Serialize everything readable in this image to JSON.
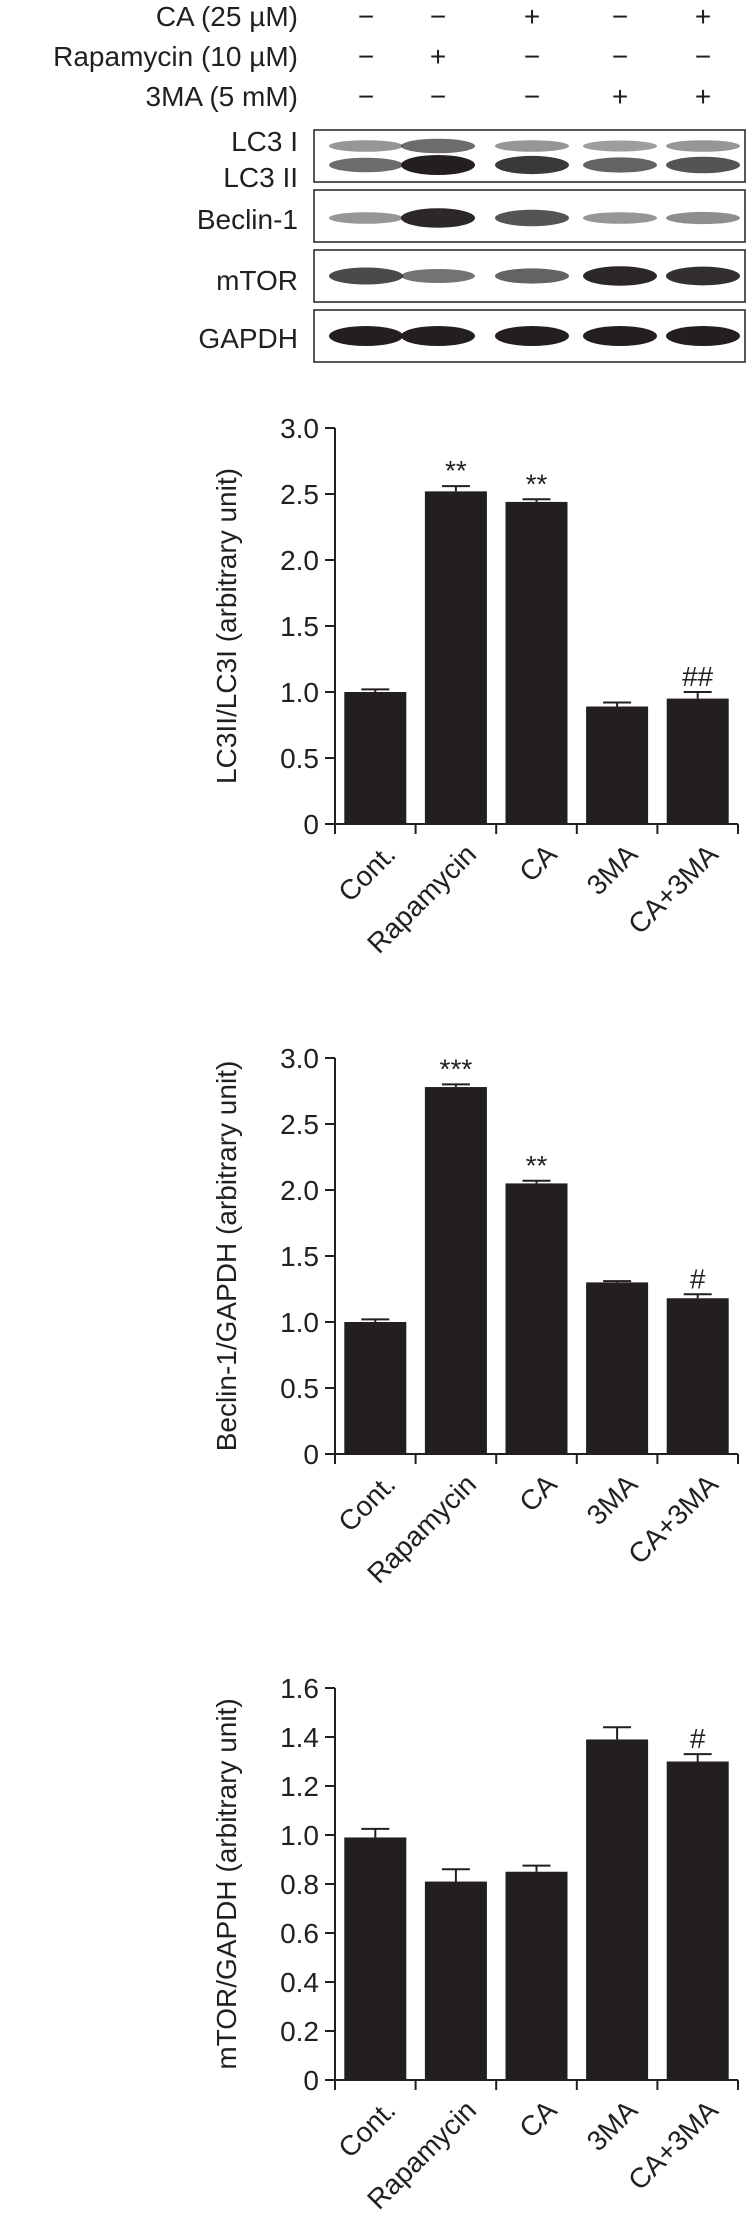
{
  "blot": {
    "conditions": [
      {
        "label": "CA (25 µM)",
        "marks": [
          "−",
          "−",
          "+",
          "−",
          "+"
        ]
      },
      {
        "label": "Rapamycin (10 µM)",
        "marks": [
          "−",
          "+",
          "−",
          "−",
          "−"
        ]
      },
      {
        "label": "3MA (5 mM)",
        "marks": [
          "−",
          "−",
          "−",
          "+",
          "+"
        ]
      }
    ],
    "panels": [
      {
        "labels": [
          "LC3 I",
          "LC3 II"
        ],
        "bands": [
          [
            0.3,
            0.55,
            0.3,
            0.25,
            0.3
          ],
          [
            0.55,
            1.0,
            0.85,
            0.6,
            0.7
          ]
        ]
      },
      {
        "labels": [
          "Beclin-1"
        ],
        "bands": [
          [
            0.3,
            0.95,
            0.7,
            0.3,
            0.35
          ]
        ]
      },
      {
        "labels": [
          "mTOR"
        ],
        "bands": [
          [
            0.75,
            0.5,
            0.6,
            0.95,
            0.9
          ]
        ]
      },
      {
        "labels": [
          "GAPDH"
        ],
        "bands": [
          [
            1.0,
            1.0,
            1.0,
            1.0,
            1.0
          ]
        ]
      }
    ]
  },
  "chart_data": [
    {
      "type": "bar",
      "categories": [
        "Cont.",
        "Rapamycin",
        "CA",
        "3MA",
        "CA+3MA"
      ],
      "values": [
        1.0,
        2.52,
        2.44,
        0.89,
        0.95
      ],
      "errors": [
        0.02,
        0.04,
        0.02,
        0.03,
        0.05
      ],
      "annotations": [
        "",
        "**",
        "**",
        "",
        "##"
      ],
      "ylabel": "LC3II/LC3I (arbitrary unit)",
      "ylim": [
        0,
        3.0
      ],
      "yticks": [
        "0",
        "0.5",
        "1.0",
        "1.5",
        "2.0",
        "2.5",
        "3.0"
      ],
      "grid": false
    },
    {
      "type": "bar",
      "categories": [
        "Cont.",
        "Rapamycin",
        "CA",
        "3MA",
        "CA+3MA"
      ],
      "values": [
        1.0,
        2.78,
        2.05,
        1.3,
        1.18
      ],
      "errors": [
        0.02,
        0.02,
        0.02,
        0.01,
        0.03
      ],
      "annotations": [
        "",
        "***",
        "**",
        "",
        "#"
      ],
      "ylabel": "Beclin-1/GAPDH (arbitrary unit)",
      "ylim": [
        0,
        3.0
      ],
      "yticks": [
        "0",
        "0.5",
        "1.0",
        "1.5",
        "2.0",
        "2.5",
        "3.0"
      ],
      "grid": false
    },
    {
      "type": "bar",
      "categories": [
        "Cont.",
        "Rapamycin",
        "CA",
        "3MA",
        "CA+3MA"
      ],
      "values": [
        0.99,
        0.81,
        0.85,
        1.39,
        1.3
      ],
      "errors": [
        0.035,
        0.05,
        0.025,
        0.05,
        0.03
      ],
      "annotations": [
        "",
        "",
        "",
        "",
        "#"
      ],
      "ylabel": "mTOR/GAPDH (arbitrary unit)",
      "ylim": [
        0,
        1.6
      ],
      "yticks": [
        "0",
        "0.2",
        "0.4",
        "0.6",
        "0.8",
        "1.0",
        "1.2",
        "1.4",
        "1.6"
      ],
      "grid": false
    }
  ]
}
